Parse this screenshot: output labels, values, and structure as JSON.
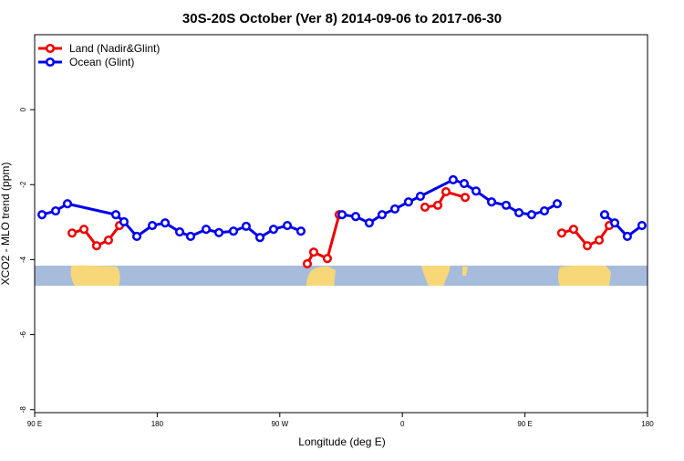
{
  "chart_data": {
    "type": "line",
    "title": "30S-20S October (Ver 8)   2014-09-06 to 2017-06-30",
    "x_label": "Longitude (deg E)",
    "y_label": "XCO2 - MLO trend (ppm)",
    "xlim": [
      90,
      540
    ],
    "xticks": [
      {
        "value": 90,
        "label": "90 E"
      },
      180,
      {
        "value": 270,
        "label": "90 W"
      },
      {
        "value": 360,
        "label": "0"
      },
      {
        "value": 450,
        "label": "90 E"
      },
      {
        "value": 540,
        "label": "180"
      }
    ],
    "ylim": [
      -8.08,
      2.0
    ],
    "yticks": [
      0,
      -2,
      -4,
      -6,
      -8
    ],
    "legend": "top-left",
    "series": [
      {
        "name": "Land (Nadir&Glint)",
        "color": "#ee0000",
        "x": [
          117.5,
          126.2,
          135.5,
          144.2,
          152.3,
          null,
          290.2,
          294.9,
          304.9,
          313.6,
          null,
          376.6,
          386.0,
          392.0,
          406.1,
          null,
          477.0,
          485.7,
          495.8,
          504.5,
          511.9
        ],
        "values": [
          -3.29,
          -3.19,
          -3.63,
          -3.48,
          -3.09,
          null,
          -4.11,
          -3.8,
          -3.97,
          -2.8,
          null,
          -2.6,
          -2.55,
          -2.19,
          -2.34,
          null,
          -3.29,
          -3.19,
          -3.63,
          -3.48,
          -3.09
        ]
      },
      {
        "name": "Ocean (Glint)",
        "color": "#0000ee",
        "x": [
          95.4,
          105.4,
          114.1,
          149.6,
          155.6,
          165.0,
          176.4,
          185.8,
          196.5,
          204.5,
          215.9,
          225.3,
          236.0,
          245.3,
          255.4,
          265.4,
          275.5,
          285.5,
          null,
          315.7,
          325.7,
          335.7,
          345.1,
          354.5,
          364.5,
          373.2,
          397.3,
          405.4,
          414.1,
          425.5,
          436.2,
          445.6,
          454.9,
          464.3,
          473.7,
          null,
          508.5,
          515.9,
          525.2,
          535.9
        ],
        "values": [
          -2.8,
          -2.7,
          -2.51,
          -2.8,
          -2.99,
          -3.38,
          -3.09,
          -3.02,
          -3.26,
          -3.38,
          -3.19,
          -3.28,
          -3.24,
          -3.11,
          -3.41,
          -3.19,
          -3.09,
          -3.24,
          null,
          -2.8,
          -2.85,
          -3.02,
          -2.8,
          -2.65,
          -2.46,
          -2.31,
          -1.87,
          -1.97,
          -2.17,
          -2.46,
          -2.55,
          -2.75,
          -2.8,
          -2.7,
          -2.51,
          null,
          -2.8,
          -3.02,
          -3.38,
          -3.09
        ]
      }
    ]
  }
}
